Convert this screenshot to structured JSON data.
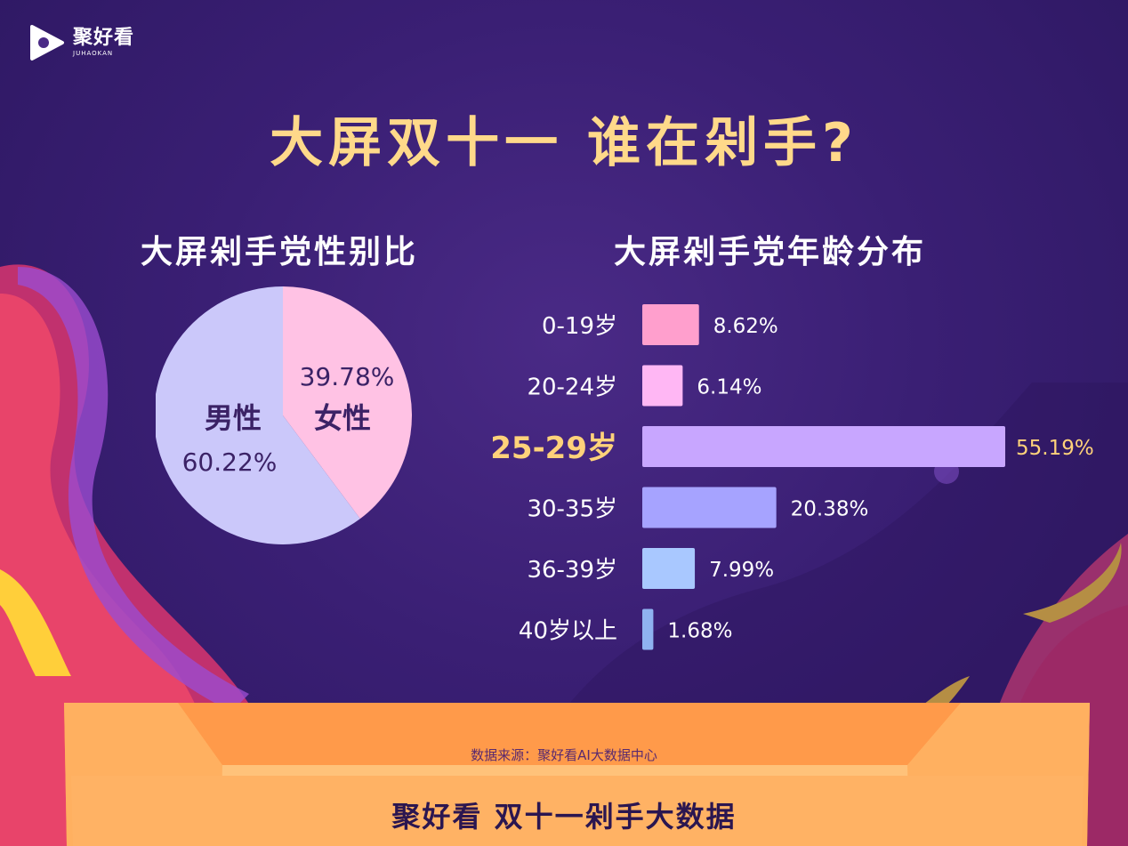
{
  "brand": {
    "name": "聚好看",
    "sub": "JUHAOKAN"
  },
  "title": "大屏双十一 谁在剁手?",
  "footer": "聚好看 双十一剁手大数据",
  "source": "数据来源：聚好看AI大数据中心",
  "colors": {
    "title": "#ffd98a",
    "female": "#ffc2e4",
    "male": "#cbc8fa",
    "highlight": "#ffd27a",
    "bars": [
      "#ff9fcd",
      "#ffb7f4",
      "#c8a6ff",
      "#a6a3ff",
      "#a9c8ff",
      "#8fb2f0"
    ]
  },
  "chart_data": [
    {
      "type": "pie",
      "title": "大屏剁手党性别比",
      "slices": [
        {
          "label": "女性",
          "value": 39.78,
          "value_label": "39.78%"
        },
        {
          "label": "男性",
          "value": 60.22,
          "value_label": "60.22%"
        }
      ]
    },
    {
      "type": "bar",
      "orientation": "horizontal",
      "title": "大屏剁手党年龄分布",
      "categories": [
        "0-19岁",
        "20-24岁",
        "25-29岁",
        "30-35岁",
        "36-39岁",
        "40岁以上"
      ],
      "values": [
        8.62,
        6.14,
        55.19,
        20.38,
        7.99,
        1.68
      ],
      "value_labels": [
        "8.62%",
        "6.14%",
        "55.19%",
        "20.38%",
        "7.99%",
        "1.68%"
      ],
      "highlight": "25-29岁"
    }
  ]
}
